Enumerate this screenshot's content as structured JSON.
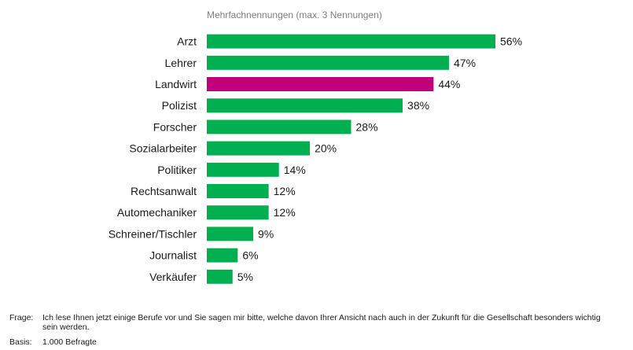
{
  "subtitle": "Mehrfachnennungen (max. 3 Nennungen)",
  "colors": {
    "default": "#00b050",
    "highlight": "#c0007a"
  },
  "chart_data": {
    "type": "bar",
    "orientation": "horizontal",
    "categories": [
      "Arzt",
      "Lehrer",
      "Landwirt",
      "Polizist",
      "Forscher",
      "Sozialarbeiter",
      "Politiker",
      "Rechtsanwalt",
      "Automechaniker",
      "Schreiner/Tischler",
      "Journalist",
      "Verkäufer"
    ],
    "values": [
      56,
      47,
      44,
      38,
      28,
      20,
      14,
      12,
      12,
      9,
      6,
      5
    ],
    "value_labels": [
      "56%",
      "47%",
      "44%",
      "38%",
      "28%",
      "20%",
      "14%",
      "12%",
      "12%",
      "9%",
      "6%",
      "5%"
    ],
    "highlight": "Landwirt",
    "xlim": [
      0,
      56
    ],
    "grid": false,
    "legend": "none"
  },
  "footnote": {
    "frage_label": "Frage:",
    "frage_text": "Ich lese Ihnen jetzt einige Berufe vor und Sie sagen mir bitte, welche davon Ihrer Ansicht nach auch in der Zukunft für die Gesellschaft besonders wichtig sein werden.",
    "basis_label": "Basis:",
    "basis_text": "1.000 Befragte"
  }
}
